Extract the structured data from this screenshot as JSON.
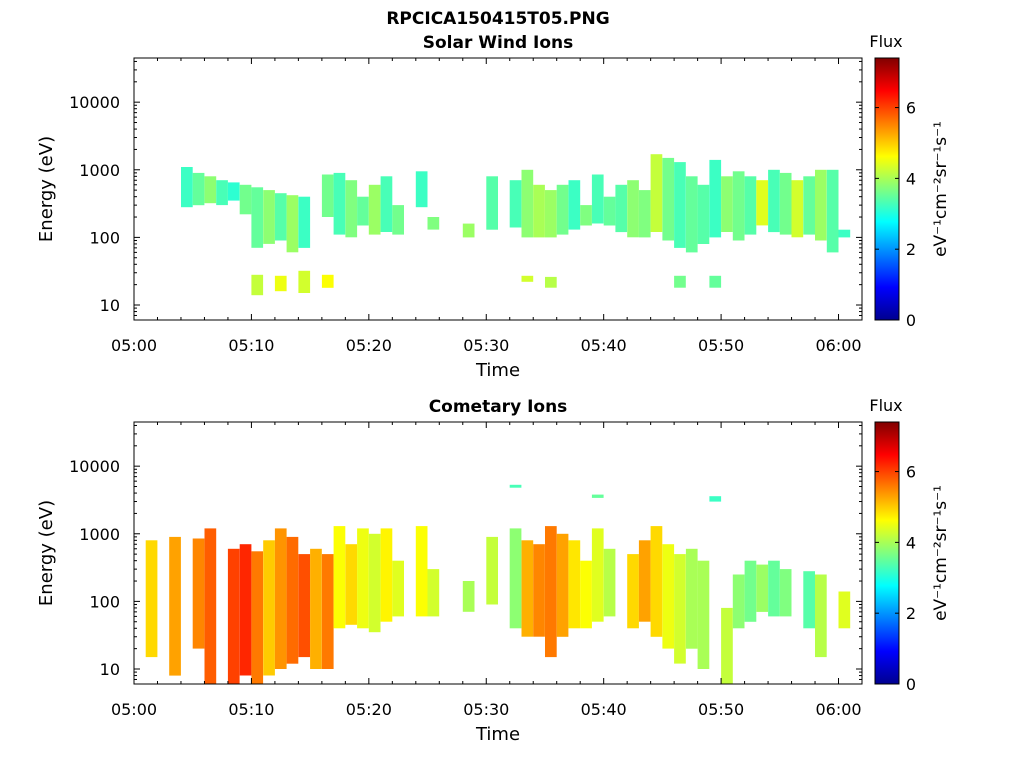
{
  "figure": {
    "title": "RPCICA150415T05.PNG"
  },
  "colorbar": {
    "title": "Flux",
    "label": "eV⁻¹cm⁻²sr⁻¹s⁻¹",
    "min": 0,
    "max": 7.4,
    "ticks": [
      "0",
      "2",
      "4",
      "6"
    ],
    "colormap": "jet"
  },
  "chart_data": [
    {
      "type": "heatmap",
      "title": "Solar Wind Ions",
      "xlabel": "Time",
      "ylabel": "Energy (eV)",
      "yscale": "log",
      "xlim": [
        "05:00",
        "06:02"
      ],
      "ylim": [
        6,
        45000
      ],
      "xticks": [
        "05:00",
        "05:10",
        "05:20",
        "05:30",
        "05:40",
        "05:50",
        "06:00"
      ],
      "yticks": [
        "10",
        "100",
        "1000",
        "10000"
      ],
      "grid": false,
      "cells": [
        [
          "05:04",
          280,
          1100,
          3.2
        ],
        [
          "05:05",
          300,
          900,
          3.5
        ],
        [
          "05:06",
          320,
          800,
          3.8
        ],
        [
          "05:07",
          300,
          700,
          3.3
        ],
        [
          "05:08",
          350,
          650,
          3.1
        ],
        [
          "05:09",
          220,
          600,
          3.6
        ],
        [
          "05:10",
          70,
          550,
          3.5
        ],
        [
          "05:11",
          80,
          500,
          3.8
        ],
        [
          "05:12",
          90,
          450,
          3.4
        ],
        [
          "05:13",
          60,
          420,
          3.9
        ],
        [
          "05:14",
          70,
          400,
          3.2
        ],
        [
          "05:16",
          200,
          850,
          3.6
        ],
        [
          "05:17",
          110,
          900,
          3.3
        ],
        [
          "05:18",
          100,
          700,
          3.7
        ],
        [
          "05:19",
          150,
          400,
          3.5
        ],
        [
          "05:20",
          110,
          600,
          3.9
        ],
        [
          "05:21",
          120,
          800,
          3.3
        ],
        [
          "05:22",
          110,
          300,
          3.6
        ],
        [
          "05:24",
          280,
          950,
          3.2
        ],
        [
          "05:25",
          130,
          200,
          3.7
        ],
        [
          "05:28",
          100,
          160,
          3.9
        ],
        [
          "05:30",
          130,
          800,
          3.4
        ],
        [
          "05:32",
          140,
          700,
          3.3
        ],
        [
          "05:33",
          100,
          1000,
          3.8
        ],
        [
          "05:34",
          100,
          600,
          4.0
        ],
        [
          "05:35",
          100,
          500,
          3.9
        ],
        [
          "05:36",
          110,
          600,
          3.6
        ],
        [
          "05:37",
          130,
          700,
          3.2
        ],
        [
          "05:38",
          150,
          300,
          3.7
        ],
        [
          "05:39",
          160,
          850,
          3.3
        ],
        [
          "05:40",
          150,
          400,
          3.5
        ],
        [
          "05:41",
          120,
          600,
          3.4
        ],
        [
          "05:42",
          100,
          700,
          3.8
        ],
        [
          "05:43",
          100,
          500,
          3.7
        ],
        [
          "05:44",
          120,
          1700,
          4.2
        ],
        [
          "05:45",
          90,
          1500,
          3.6
        ],
        [
          "05:46",
          70,
          1300,
          3.3
        ],
        [
          "05:47",
          60,
          800,
          3.5
        ],
        [
          "05:48",
          80,
          600,
          3.4
        ],
        [
          "05:49",
          100,
          1400,
          3.2
        ],
        [
          "05:50",
          120,
          800,
          3.8
        ],
        [
          "05:51",
          90,
          950,
          3.6
        ],
        [
          "05:52",
          110,
          800,
          3.4
        ],
        [
          "05:53",
          150,
          700,
          4.4
        ],
        [
          "05:54",
          120,
          1000,
          3.3
        ],
        [
          "05:55",
          110,
          900,
          3.6
        ],
        [
          "05:56",
          100,
          700,
          4.3
        ],
        [
          "05:57",
          110,
          800,
          3.5
        ],
        [
          "05:58",
          90,
          1000,
          3.9
        ],
        [
          "05:59",
          60,
          1000,
          3.4
        ],
        [
          "06:00",
          100,
          130,
          3.2
        ],
        [
          "05:10",
          14,
          28,
          4.2
        ],
        [
          "05:12",
          16,
          27,
          4.5
        ],
        [
          "05:14",
          15,
          32,
          4.3
        ],
        [
          "05:16",
          18,
          28,
          4.6
        ],
        [
          "05:33",
          22,
          27,
          4.3
        ],
        [
          "05:35",
          18,
          26,
          4.1
        ],
        [
          "05:46",
          18,
          27,
          3.6
        ],
        [
          "05:49",
          18,
          27,
          3.5
        ]
      ]
    },
    {
      "type": "heatmap",
      "title": "Cometary Ions",
      "xlabel": "Time",
      "ylabel": "Energy (eV)",
      "yscale": "log",
      "xlim": [
        "05:00",
        "06:02"
      ],
      "ylim": [
        6,
        45000
      ],
      "xticks": [
        "05:00",
        "05:10",
        "05:20",
        "05:30",
        "05:40",
        "05:50",
        "06:00"
      ],
      "yticks": [
        "10",
        "100",
        "1000",
        "10000"
      ],
      "grid": false,
      "cells": [
        [
          "05:01",
          15,
          800,
          4.9
        ],
        [
          "05:03",
          8,
          900,
          5.3
        ],
        [
          "05:05",
          20,
          850,
          5.5
        ],
        [
          "05:06",
          6,
          1200,
          5.8
        ],
        [
          "05:08",
          6,
          600,
          6.0
        ],
        [
          "05:09",
          8,
          700,
          6.2
        ],
        [
          "05:10",
          6,
          550,
          5.6
        ],
        [
          "05:11",
          8,
          800,
          5.0
        ],
        [
          "05:12",
          10,
          1200,
          5.4
        ],
        [
          "05:13",
          12,
          900,
          5.7
        ],
        [
          "05:14",
          15,
          500,
          5.9
        ],
        [
          "05:15",
          10,
          600,
          5.2
        ],
        [
          "05:16",
          10,
          500,
          5.6
        ],
        [
          "05:17",
          40,
          1300,
          4.6
        ],
        [
          "05:18",
          45,
          700,
          4.9
        ],
        [
          "05:19",
          40,
          1200,
          4.5
        ],
        [
          "05:20",
          35,
          1000,
          4.3
        ],
        [
          "05:21",
          50,
          1200,
          4.7
        ],
        [
          "05:22",
          60,
          400,
          4.4
        ],
        [
          "05:24",
          60,
          1300,
          4.6
        ],
        [
          "05:25",
          60,
          300,
          4.3
        ],
        [
          "05:28",
          70,
          200,
          4.0
        ],
        [
          "05:30",
          90,
          900,
          4.2
        ],
        [
          "05:32",
          40,
          1200,
          3.8
        ],
        [
          "05:33",
          30,
          800,
          5.2
        ],
        [
          "05:34",
          30,
          700,
          5.5
        ],
        [
          "05:35",
          15,
          1300,
          5.6
        ],
        [
          "05:36",
          30,
          1000,
          5.3
        ],
        [
          "05:37",
          40,
          800,
          4.8
        ],
        [
          "05:38",
          40,
          400,
          4.6
        ],
        [
          "05:39",
          50,
          1200,
          4.4
        ],
        [
          "05:40",
          60,
          600,
          4.1
        ],
        [
          "05:42",
          40,
          500,
          4.9
        ],
        [
          "05:43",
          50,
          800,
          5.3
        ],
        [
          "05:44",
          30,
          1300,
          4.9
        ],
        [
          "05:45",
          20,
          700,
          4.5
        ],
        [
          "05:46",
          12,
          500,
          4.3
        ],
        [
          "05:47",
          20,
          600,
          4.0
        ],
        [
          "05:48",
          10,
          400,
          4.0
        ],
        [
          "05:50",
          6,
          80,
          4.2
        ],
        [
          "05:51",
          40,
          250,
          3.8
        ],
        [
          "05:52",
          50,
          400,
          3.6
        ],
        [
          "05:53",
          70,
          350,
          3.9
        ],
        [
          "05:54",
          60,
          400,
          3.5
        ],
        [
          "05:55",
          60,
          300,
          3.7
        ],
        [
          "05:57",
          40,
          280,
          3.4
        ],
        [
          "05:58",
          15,
          250,
          4.1
        ],
        [
          "06:00",
          40,
          140,
          4.4
        ],
        [
          "05:32",
          4800,
          5300,
          3.3
        ],
        [
          "05:39",
          3400,
          3800,
          3.5
        ],
        [
          "05:49",
          3000,
          3600,
          3.2
        ]
      ]
    }
  ]
}
